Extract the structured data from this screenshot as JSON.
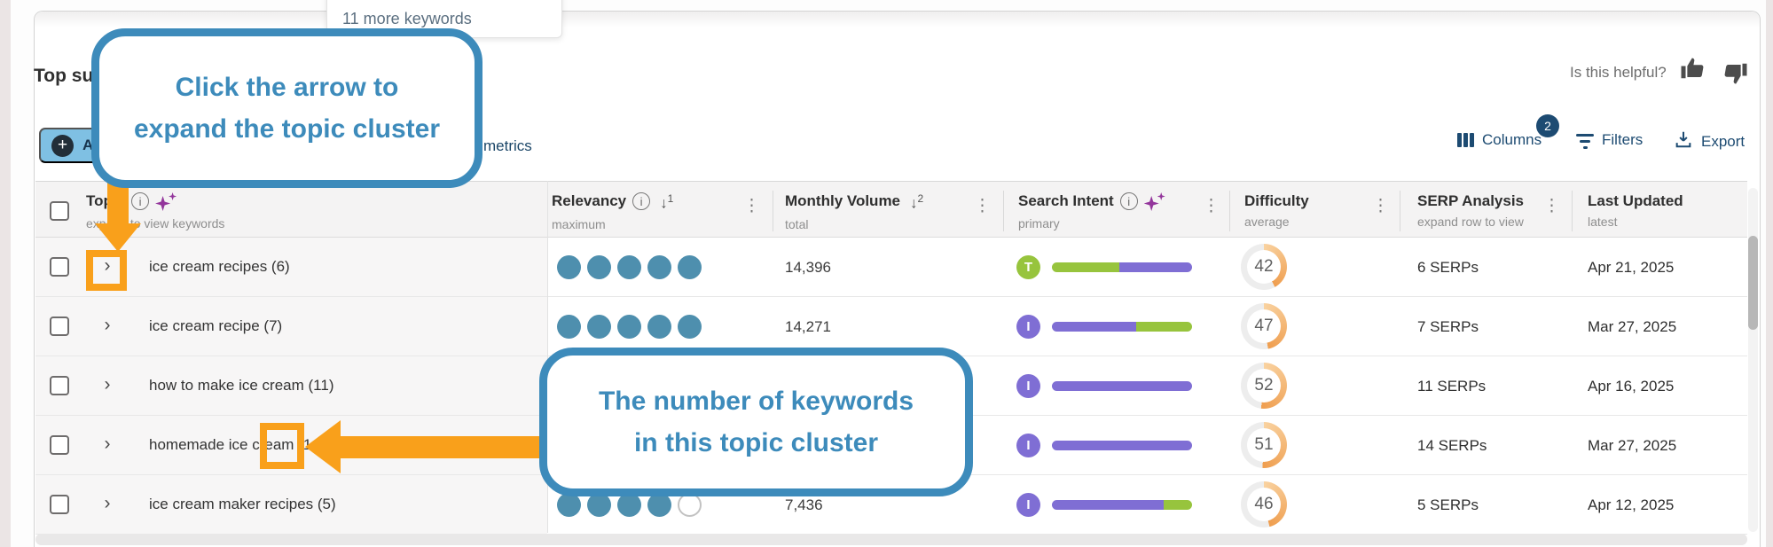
{
  "colors": {
    "annotation_orange": "#f9a01b",
    "callout_blue": "#3d8bbb",
    "dot_teal": "#4e8fae",
    "intent_purple": "#7f6ed4",
    "intent_green": "#97c43d",
    "difficulty_arc_start": "#f9d2a0",
    "difficulty_arc_end": "#ef9e4f",
    "navy": "#1d4b72"
  },
  "tooltip": {
    "text": "11 more keywords"
  },
  "panel": {
    "heading_visible": "Top su",
    "add_button_visible_label": "A",
    "metrics_fragment": "metrics",
    "feedback_question": "Is this helpful?",
    "toolbar": {
      "columns_label": "Columns",
      "columns_badge": "2",
      "filters_label": "Filters",
      "export_label": "Export"
    }
  },
  "table": {
    "columns": [
      {
        "title": "Topic",
        "subtitle": "expand to view keywords"
      },
      {
        "title": "Relevancy",
        "subtitle": "maximum",
        "sort_rank": "1"
      },
      {
        "title": "Monthly Volume",
        "subtitle": "total",
        "sort_rank": "2"
      },
      {
        "title": "Search Intent",
        "subtitle": "primary"
      },
      {
        "title": "Difficulty",
        "subtitle": "average"
      },
      {
        "title": "SERP Analysis",
        "subtitle": "expand row to view"
      },
      {
        "title": "Last Updated",
        "subtitle": "latest"
      }
    ],
    "rows": [
      {
        "topic": "ice cream recipes (6)",
        "relevancy": 5,
        "volume": "14,396",
        "intent": {
          "label": "T",
          "color": "green",
          "segments": [
            [
              "green",
              48
            ],
            [
              "purple",
              52
            ]
          ]
        },
        "difficulty": 42,
        "serp": "6 SERPs",
        "updated": "Apr 21, 2025"
      },
      {
        "topic": "ice cream recipe (7)",
        "relevancy": 5,
        "volume": "14,271",
        "intent": {
          "label": "I",
          "color": "purple",
          "segments": [
            [
              "purple",
              60
            ],
            [
              "green",
              40
            ]
          ]
        },
        "difficulty": 47,
        "serp": "7 SERPs",
        "updated": "Mar 27, 2025"
      },
      {
        "topic": "how to make ice cream (11)",
        "relevancy": null,
        "volume": null,
        "intent": {
          "label": "I",
          "color": "purple",
          "segments": [
            [
              "purple",
              100
            ]
          ]
        },
        "difficulty": 52,
        "serp": "11 SERPs",
        "updated": "Apr 16, 2025"
      },
      {
        "topic": "homemade ice cream (14)",
        "relevancy": null,
        "volume": null,
        "intent": {
          "label": "I",
          "color": "purple",
          "segments": [
            [
              "purple",
              100
            ]
          ]
        },
        "difficulty": 51,
        "serp": "14 SERPs",
        "updated": "Mar 27, 2025"
      },
      {
        "topic": "ice cream maker recipes (5)",
        "relevancy": 4,
        "volume": "7,436",
        "intent": {
          "label": "I",
          "color": "purple",
          "segments": [
            [
              "purple",
              80
            ],
            [
              "green",
              20
            ]
          ]
        },
        "difficulty": 46,
        "serp": "5 SERPs",
        "updated": "Apr 12, 2025"
      }
    ]
  },
  "annotations": {
    "callout1_line1": "Click the arrow to",
    "callout1_line2": "expand the topic cluster",
    "callout2_line1": "The number of keywords",
    "callout2_line2": "in this topic cluster"
  }
}
